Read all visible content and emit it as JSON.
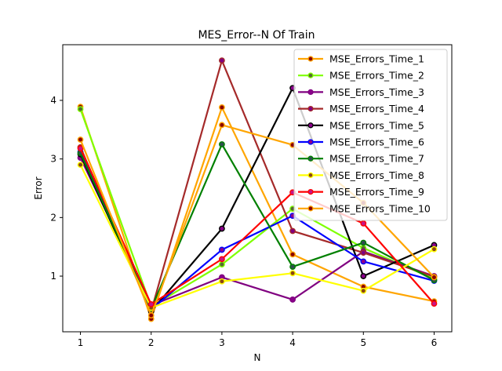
{
  "chart_data": {
    "type": "line",
    "title": "MES_Error--N Of Train",
    "xlabel": "N",
    "ylabel": "Error",
    "x": [
      1,
      2,
      3,
      4,
      5,
      6
    ],
    "xlim": [
      0.75,
      6.25
    ],
    "ylim": [
      0.05,
      4.95
    ],
    "xticks": [
      "1",
      "2",
      "3",
      "4",
      "5",
      "6"
    ],
    "yticks": [
      "1",
      "2",
      "3",
      "4"
    ],
    "grid": false,
    "legend_position": "top-right",
    "series": [
      {
        "name": "MSE_Errors_Time_1",
        "color": "#ffa500",
        "marker_color": "#8b0000",
        "values": [
          3.89,
          0.27,
          3.88,
          1.37,
          0.82,
          0.57
        ]
      },
      {
        "name": "MSE_Errors_Time_2",
        "color": "#7fff00",
        "marker_color": "#556b2f",
        "values": [
          3.85,
          0.48,
          1.2,
          2.15,
          1.48,
          0.95
        ]
      },
      {
        "name": "MSE_Errors_Time_3",
        "color": "#800080",
        "marker_color": "#8b008b",
        "values": [
          3.02,
          0.5,
          0.98,
          0.6,
          1.42,
          1.0
        ]
      },
      {
        "name": "MSE_Errors_Time_4",
        "color": "#a52a2a",
        "marker_color": "#800080",
        "values": [
          3.2,
          0.4,
          4.68,
          1.77,
          1.4,
          0.99
        ]
      },
      {
        "name": "MSE_Errors_Time_5",
        "color": "#000000",
        "marker_color": "#8b008b",
        "values": [
          3.08,
          0.4,
          1.81,
          4.21,
          1.0,
          1.53
        ]
      },
      {
        "name": "MSE_Errors_Time_6",
        "color": "#0000ff",
        "marker_color": "#8b008b",
        "values": [
          3.12,
          0.43,
          1.45,
          2.03,
          1.25,
          0.92
        ]
      },
      {
        "name": "MSE_Errors_Time_7",
        "color": "#008000",
        "marker_color": "#2f4f4f",
        "values": [
          3.1,
          0.44,
          3.25,
          1.16,
          1.57,
          0.93
        ]
      },
      {
        "name": "MSE_Errors_Time_8",
        "color": "#ffff00",
        "marker_color": "#8b4513",
        "values": [
          2.9,
          0.46,
          0.91,
          1.05,
          0.75,
          1.46
        ]
      },
      {
        "name": "MSE_Errors_Time_9",
        "color": "#ff0000",
        "marker_color": "#c71585",
        "values": [
          3.18,
          0.52,
          1.29,
          2.43,
          1.9,
          0.53
        ]
      },
      {
        "name": "MSE_Errors_Time_10",
        "color": "#ffa500",
        "marker_color": "#8b0000",
        "values": [
          3.33,
          0.33,
          3.58,
          3.24,
          2.25,
          0.98
        ]
      }
    ]
  }
}
